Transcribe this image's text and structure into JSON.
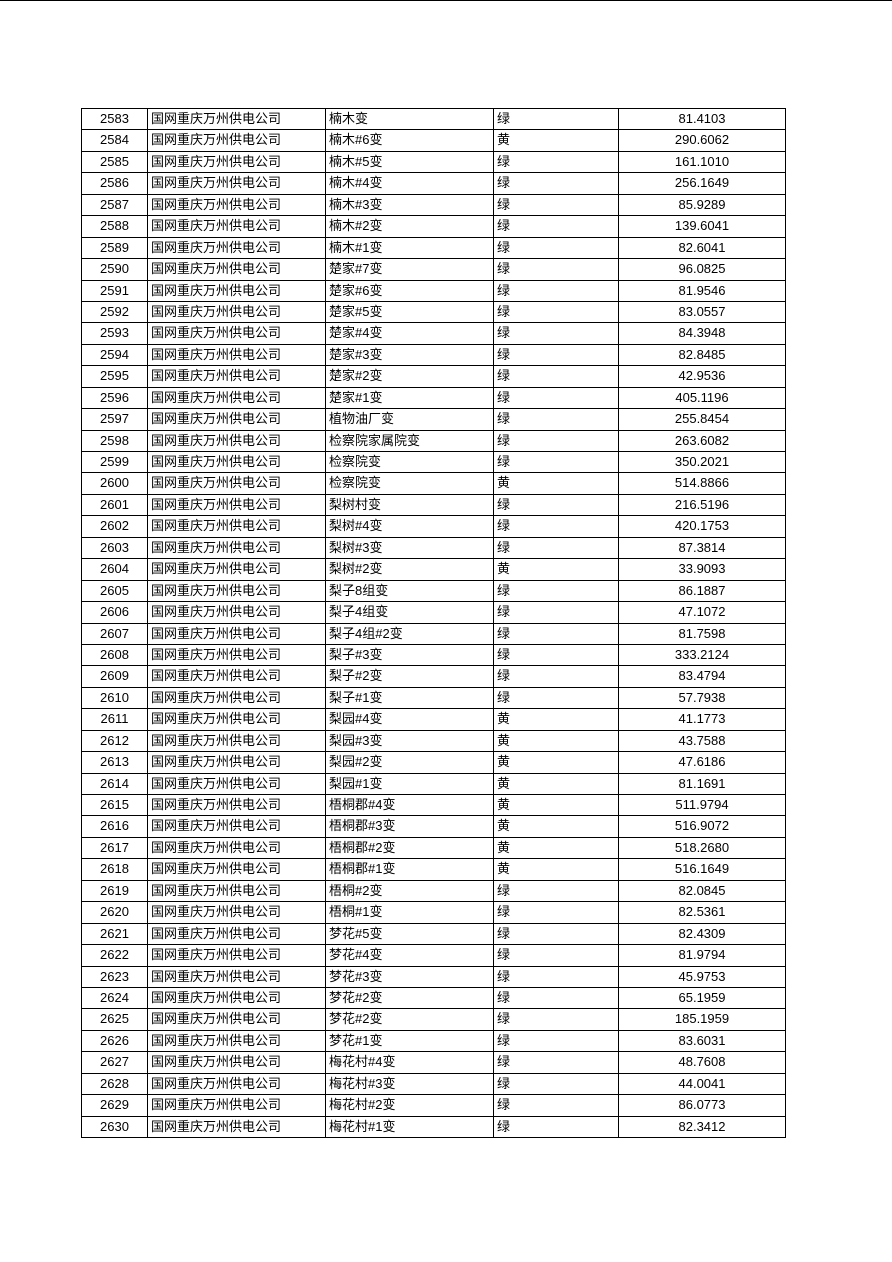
{
  "table": {
    "rows": [
      [
        "2583",
        "国网重庆万州供电公司",
        "楠木变",
        "绿",
        "81.4103"
      ],
      [
        "2584",
        "国网重庆万州供电公司",
        "楠木#6变",
        "黄",
        "290.6062"
      ],
      [
        "2585",
        "国网重庆万州供电公司",
        "楠木#5变",
        "绿",
        "161.1010"
      ],
      [
        "2586",
        "国网重庆万州供电公司",
        "楠木#4变",
        "绿",
        "256.1649"
      ],
      [
        "2587",
        "国网重庆万州供电公司",
        "楠木#3变",
        "绿",
        "85.9289"
      ],
      [
        "2588",
        "国网重庆万州供电公司",
        "楠木#2变",
        "绿",
        "139.6041"
      ],
      [
        "2589",
        "国网重庆万州供电公司",
        "楠木#1变",
        "绿",
        "82.6041"
      ],
      [
        "2590",
        "国网重庆万州供电公司",
        "楚家#7变",
        "绿",
        "96.0825"
      ],
      [
        "2591",
        "国网重庆万州供电公司",
        "楚家#6变",
        "绿",
        "81.9546"
      ],
      [
        "2592",
        "国网重庆万州供电公司",
        "楚家#5变",
        "绿",
        "83.0557"
      ],
      [
        "2593",
        "国网重庆万州供电公司",
        "楚家#4变",
        "绿",
        "84.3948"
      ],
      [
        "2594",
        "国网重庆万州供电公司",
        "楚家#3变",
        "绿",
        "82.8485"
      ],
      [
        "2595",
        "国网重庆万州供电公司",
        "楚家#2变",
        "绿",
        "42.9536"
      ],
      [
        "2596",
        "国网重庆万州供电公司",
        "楚家#1变",
        "绿",
        "405.1196"
      ],
      [
        "2597",
        "国网重庆万州供电公司",
        "植物油厂变",
        "绿",
        "255.8454"
      ],
      [
        "2598",
        "国网重庆万州供电公司",
        "检察院家属院变",
        "绿",
        "263.6082"
      ],
      [
        "2599",
        "国网重庆万州供电公司",
        "检察院变",
        "绿",
        "350.2021"
      ],
      [
        "2600",
        "国网重庆万州供电公司",
        "检察院变",
        "黄",
        "514.8866"
      ],
      [
        "2601",
        "国网重庆万州供电公司",
        "梨树村变",
        "绿",
        "216.5196"
      ],
      [
        "2602",
        "国网重庆万州供电公司",
        "梨树#4变",
        "绿",
        "420.1753"
      ],
      [
        "2603",
        "国网重庆万州供电公司",
        "梨树#3变",
        "绿",
        "87.3814"
      ],
      [
        "2604",
        "国网重庆万州供电公司",
        "梨树#2变",
        "黄",
        "33.9093"
      ],
      [
        "2605",
        "国网重庆万州供电公司",
        "梨子8组变",
        "绿",
        "86.1887"
      ],
      [
        "2606",
        "国网重庆万州供电公司",
        "梨子4组变",
        "绿",
        "47.1072"
      ],
      [
        "2607",
        "国网重庆万州供电公司",
        "梨子4组#2变",
        "绿",
        "81.7598"
      ],
      [
        "2608",
        "国网重庆万州供电公司",
        "梨子#3变",
        "绿",
        "333.2124"
      ],
      [
        "2609",
        "国网重庆万州供电公司",
        "梨子#2变",
        "绿",
        "83.4794"
      ],
      [
        "2610",
        "国网重庆万州供电公司",
        "梨子#1变",
        "绿",
        "57.7938"
      ],
      [
        "2611",
        "国网重庆万州供电公司",
        "梨园#4变",
        "黄",
        "41.1773"
      ],
      [
        "2612",
        "国网重庆万州供电公司",
        "梨园#3变",
        "黄",
        "43.7588"
      ],
      [
        "2613",
        "国网重庆万州供电公司",
        "梨园#2变",
        "黄",
        "47.6186"
      ],
      [
        "2614",
        "国网重庆万州供电公司",
        "梨园#1变",
        "黄",
        "81.1691"
      ],
      [
        "2615",
        "国网重庆万州供电公司",
        "梧桐郡#4变",
        "黄",
        "511.9794"
      ],
      [
        "2616",
        "国网重庆万州供电公司",
        "梧桐郡#3变",
        "黄",
        "516.9072"
      ],
      [
        "2617",
        "国网重庆万州供电公司",
        "梧桐郡#2变",
        "黄",
        "518.2680"
      ],
      [
        "2618",
        "国网重庆万州供电公司",
        "梧桐郡#1变",
        "黄",
        "516.1649"
      ],
      [
        "2619",
        "国网重庆万州供电公司",
        "梧桐#2变",
        "绿",
        "82.0845"
      ],
      [
        "2620",
        "国网重庆万州供电公司",
        "梧桐#1变",
        "绿",
        "82.5361"
      ],
      [
        "2621",
        "国网重庆万州供电公司",
        "梦花#5变",
        "绿",
        "82.4309"
      ],
      [
        "2622",
        "国网重庆万州供电公司",
        "梦花#4变",
        "绿",
        "81.9794"
      ],
      [
        "2623",
        "国网重庆万州供电公司",
        "梦花#3变",
        "绿",
        "45.9753"
      ],
      [
        "2624",
        "国网重庆万州供电公司",
        "梦花#2变",
        "绿",
        "65.1959"
      ],
      [
        "2625",
        "国网重庆万州供电公司",
        "梦花#2变",
        "绿",
        "185.1959"
      ],
      [
        "2626",
        "国网重庆万州供电公司",
        "梦花#1变",
        "绿",
        "83.6031"
      ],
      [
        "2627",
        "国网重庆万州供电公司",
        "梅花村#4变",
        "绿",
        "48.7608"
      ],
      [
        "2628",
        "国网重庆万州供电公司",
        "梅花村#3变",
        "绿",
        "44.0041"
      ],
      [
        "2629",
        "国网重庆万州供电公司",
        "梅花村#2变",
        "绿",
        "86.0773"
      ],
      [
        "2630",
        "国网重庆万州供电公司",
        "梅花村#1变",
        "绿",
        "82.3412"
      ]
    ]
  }
}
